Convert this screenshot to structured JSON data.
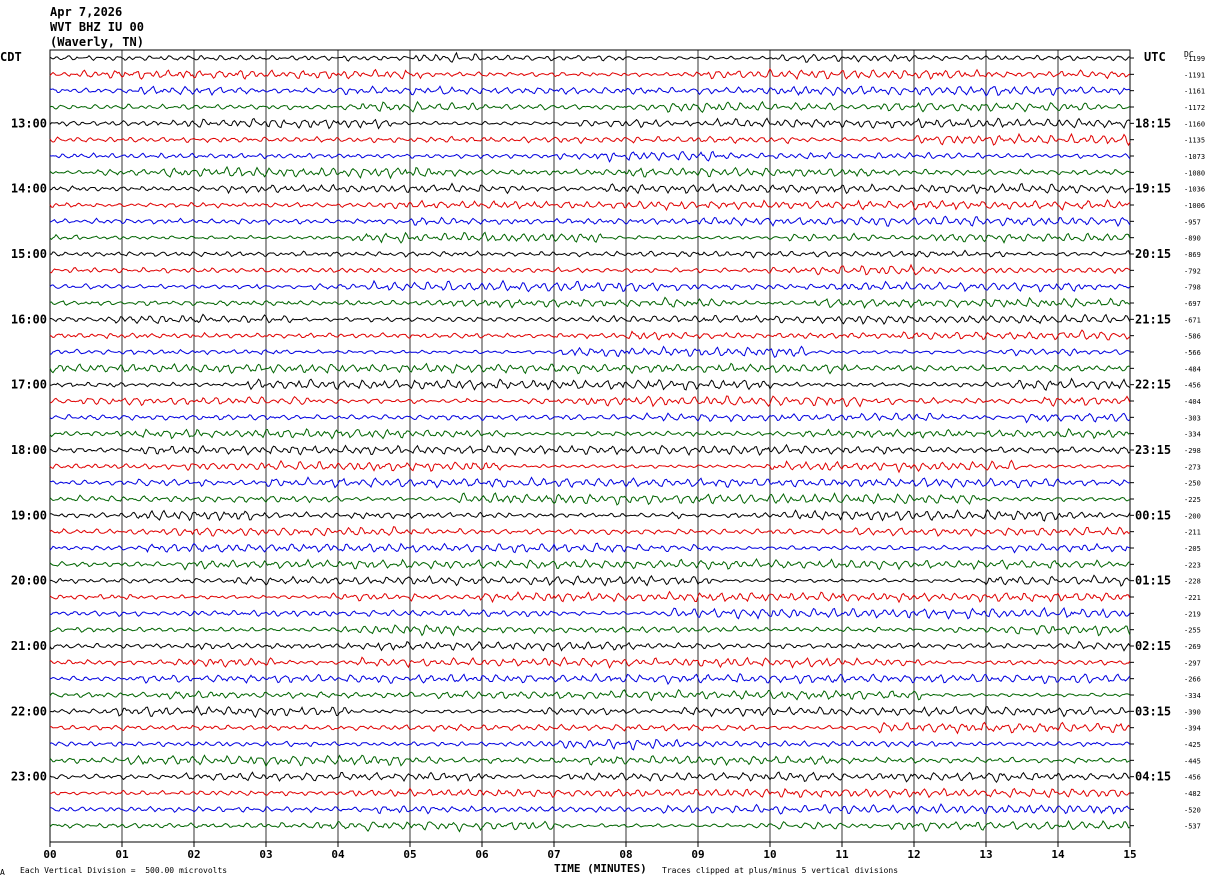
{
  "header": {
    "date": "Apr 7,2026",
    "station": "WVT BHZ IU 00",
    "location": "(Waverly, TN)"
  },
  "left_axis_title": "CDT",
  "right_axis_title": "UTC",
  "right_corner_label": "DC",
  "footer": {
    "scale_note": "Each Vertical Division =  500.00 microvolts",
    "clip_note": "Traces clipped at plus/minus 5 vertical divisions",
    "corner_mark": "A"
  },
  "chart_data": {
    "type": "line",
    "xlabel": "TIME (MINUTES)",
    "x_ticks": [
      "00",
      "01",
      "02",
      "03",
      "04",
      "05",
      "06",
      "07",
      "08",
      "09",
      "10",
      "11",
      "12",
      "13",
      "14",
      "15"
    ],
    "xlim": [
      0,
      15
    ],
    "grid": true,
    "left_time_labels": [
      "13:00",
      "14:00",
      "15:00",
      "16:00",
      "17:00",
      "18:00",
      "19:00",
      "20:00",
      "21:00",
      "22:00",
      "23:00"
    ],
    "right_time_labels": [
      "18:15",
      "19:15",
      "20:15",
      "21:15",
      "22:15",
      "23:15",
      "00:15",
      "01:15",
      "02:15",
      "03:15",
      "04:15"
    ],
    "trace_count": 48,
    "trace_colors": [
      "#000000",
      "#e00000",
      "#0000e0",
      "#006400"
    ],
    "dc_offsets": [
      "-1199",
      "-1191",
      "-1161",
      "-1172",
      "-1160",
      "-1135",
      "-1073",
      "-1080",
      "-1036",
      "-1006",
      "-957",
      "-890",
      "-869",
      "-792",
      "-798",
      "-697",
      "-671",
      "-586",
      "-566",
      "-484",
      "-456",
      "-404",
      "-303",
      "-334",
      "-298",
      "-273",
      "-250",
      "-225",
      "-200",
      "-211",
      "-205",
      "-223",
      "-228",
      "-221",
      "-219",
      "-255",
      "-269",
      "-297",
      "-266",
      "-334",
      "-390",
      "-394",
      "-425",
      "-445",
      "-456",
      "-482",
      "-520",
      "-537"
    ]
  }
}
